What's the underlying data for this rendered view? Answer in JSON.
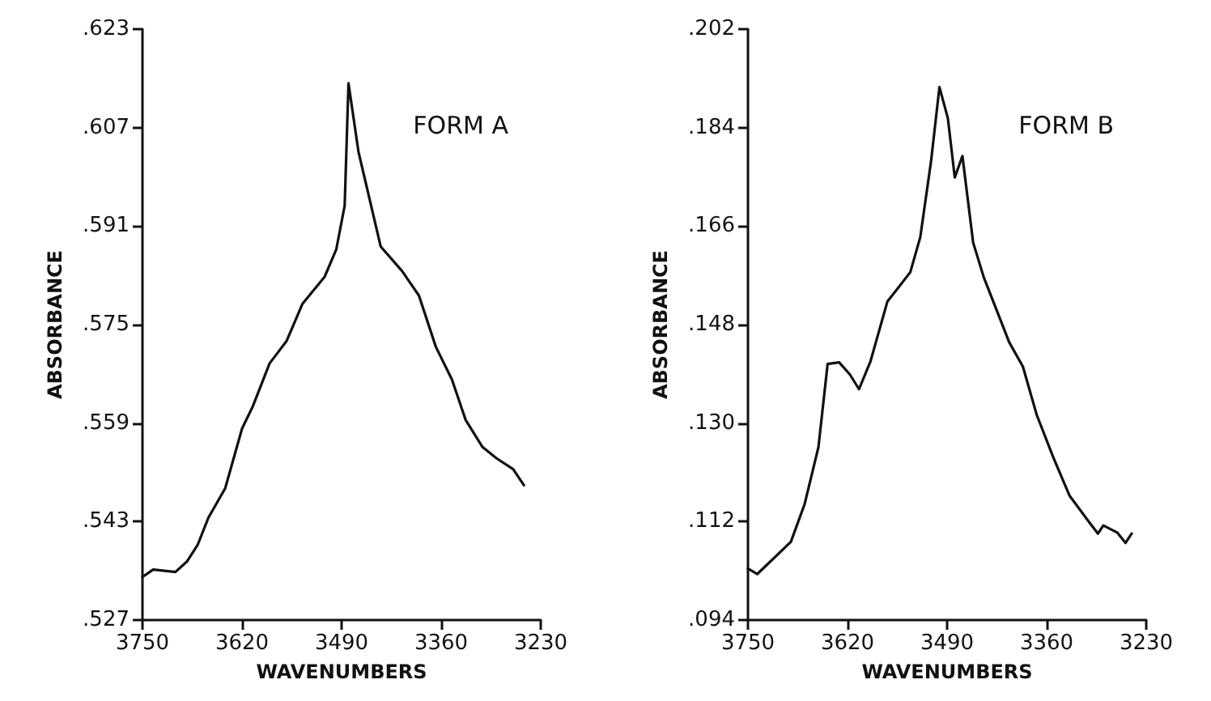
{
  "chart_data": [
    {
      "type": "line",
      "xlabel": "WAVENUMBERS",
      "ylabel": "ABSORBANCE",
      "annotations": [
        "FORM A"
      ],
      "grid": false,
      "marker": "none",
      "line_style": "solid",
      "xlim": [
        3750,
        3230
      ],
      "xticks": [
        3750,
        3620,
        3490,
        3360,
        3230
      ],
      "ylim": [
        0.527,
        0.623
      ],
      "yticks": [
        {
          "value": 0.527,
          "label": ".527"
        },
        {
          "value": 0.543,
          "label": ".543"
        },
        {
          "value": 0.559,
          "label": ".559"
        },
        {
          "value": 0.575,
          "label": ".575"
        },
        {
          "value": 0.591,
          "label": ".591"
        },
        {
          "value": 0.607,
          "label": ".607"
        },
        {
          "value": 0.623,
          "label": ".623"
        }
      ],
      "series": [
        {
          "color": "#111111",
          "x": [
            3750,
            3736,
            3707,
            3692,
            3678,
            3664,
            3642,
            3620,
            3606,
            3584,
            3562,
            3541,
            3512,
            3497,
            3486,
            3481,
            3468,
            3439,
            3411,
            3389,
            3367,
            3346,
            3328,
            3306,
            3288,
            3266,
            3252
          ],
          "values": [
            0.534,
            0.5352,
            0.5348,
            0.5365,
            0.5392,
            0.5436,
            0.5484,
            0.5581,
            0.5617,
            0.5687,
            0.5723,
            0.5784,
            0.5828,
            0.5872,
            0.5943,
            0.6142,
            0.6031,
            0.5877,
            0.5837,
            0.5797,
            0.5714,
            0.5661,
            0.5595,
            0.5551,
            0.5533,
            0.5515,
            0.5489
          ]
        }
      ]
    },
    {
      "type": "line",
      "xlabel": "WAVENUMBERS",
      "ylabel": "ABSORBANCE",
      "annotations": [
        "FORM B"
      ],
      "grid": false,
      "marker": "none",
      "line_style": "solid",
      "xlim": [
        3750,
        3230
      ],
      "xticks": [
        3750,
        3620,
        3490,
        3360,
        3230
      ],
      "ylim": [
        0.094,
        0.202
      ],
      "yticks": [
        {
          "value": 0.094,
          "label": ".094"
        },
        {
          "value": 0.112,
          "label": ".112"
        },
        {
          "value": 0.13,
          "label": ".130"
        },
        {
          "value": 0.148,
          "label": ".148"
        },
        {
          "value": 0.166,
          "label": ".166"
        },
        {
          "value": 0.184,
          "label": ".184"
        },
        {
          "value": 0.202,
          "label": ".202"
        }
      ],
      "series": [
        {
          "color": "#111111",
          "x": [
            3750,
            3738,
            3720,
            3694,
            3676,
            3658,
            3646,
            3631,
            3617,
            3605,
            3590,
            3568,
            3554,
            3538,
            3525,
            3511,
            3500,
            3489,
            3480,
            3470,
            3456,
            3442,
            3409,
            3391,
            3373,
            3351,
            3330,
            3304,
            3293,
            3286,
            3268,
            3257,
            3249
          ],
          "values": [
            0.1034,
            0.1024,
            0.1048,
            0.1083,
            0.1152,
            0.1256,
            0.1408,
            0.1411,
            0.1389,
            0.1362,
            0.1413,
            0.1522,
            0.1547,
            0.1576,
            0.164,
            0.1778,
            0.1914,
            0.1857,
            0.1749,
            0.1788,
            0.163,
            0.1566,
            0.1448,
            0.1403,
            0.1315,
            0.1236,
            0.1167,
            0.1118,
            0.1098,
            0.1113,
            0.11,
            0.1081,
            0.1098
          ]
        }
      ]
    }
  ]
}
